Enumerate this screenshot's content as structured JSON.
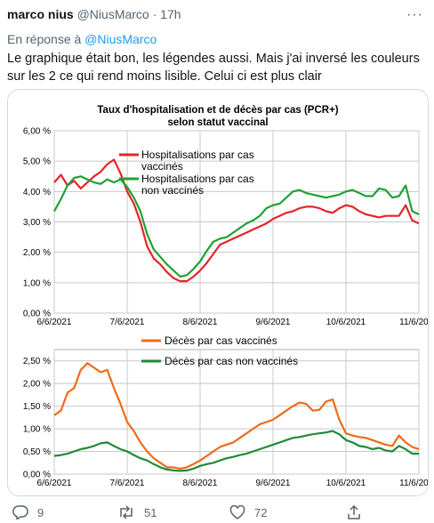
{
  "tweet": {
    "author_name": "marco nius",
    "author_handle": "@NiusMarco",
    "separator": "·",
    "time": "17h",
    "more_label": "···",
    "reply_prefix": "En réponse à",
    "reply_mention": "@NiusMarco",
    "text": "Le graphique était bon, les légendes aussi. Mais j'ai inversé les couleurs sur les 2 ce qui rend moins lisible. Celui ci est plus clair"
  },
  "actions": {
    "replies": "9",
    "retweets": "51",
    "likes": "72",
    "icons": [
      "reply-icon",
      "retweet-icon",
      "like-icon",
      "share-icon"
    ]
  },
  "colors": {
    "red": "#e52528",
    "green": "#1ca335",
    "orange": "#ef6a1a",
    "darkgreen": "#1f8a3a"
  },
  "chart_data": [
    {
      "type": "line",
      "title": "Taux d'hospitalisation et de décès par cas (PCR+)",
      "subtitle": "selon statut vaccinal",
      "x_ticks": [
        "6/6/2021",
        "7/6/2021",
        "8/6/2021",
        "9/6/2021",
        "10/6/2021",
        "11/6/2021"
      ],
      "y_ticks": [
        "0,00 %",
        "1,00 %",
        "2,00 %",
        "3,00 %",
        "4,00 %",
        "5,00 %",
        "6,00 %"
      ],
      "ylim": [
        0,
        6
      ],
      "grid": true,
      "legend_position": "top-left",
      "series": [
        {
          "name": "Hospitalisations par cas vaccinés",
          "color": "#e52528",
          "values": [
            4.3,
            4.55,
            4.2,
            4.35,
            4.1,
            4.3,
            4.5,
            4.65,
            4.9,
            5.05,
            4.6,
            4.0,
            3.6,
            3.0,
            2.2,
            1.8,
            1.6,
            1.35,
            1.15,
            1.05,
            1.05,
            1.2,
            1.4,
            1.65,
            1.95,
            2.25,
            2.35,
            2.45,
            2.55,
            2.65,
            2.75,
            2.85,
            2.95,
            3.1,
            3.2,
            3.3,
            3.35,
            3.45,
            3.5,
            3.5,
            3.45,
            3.35,
            3.3,
            3.45,
            3.55,
            3.5,
            3.35,
            3.25,
            3.2,
            3.15,
            3.2,
            3.2,
            3.2,
            3.55,
            3.05,
            2.95
          ]
        },
        {
          "name": "Hospitalisations par cas non vaccinés",
          "color": "#1ca335",
          "values": [
            3.35,
            3.75,
            4.2,
            4.45,
            4.5,
            4.4,
            4.3,
            4.25,
            4.4,
            4.3,
            4.4,
            4.15,
            3.8,
            3.35,
            2.6,
            2.1,
            1.85,
            1.6,
            1.4,
            1.2,
            1.25,
            1.45,
            1.7,
            2.05,
            2.35,
            2.45,
            2.5,
            2.65,
            2.8,
            2.95,
            3.05,
            3.2,
            3.45,
            3.55,
            3.6,
            3.8,
            4.0,
            4.05,
            3.95,
            3.9,
            3.85,
            3.8,
            3.85,
            3.9,
            4.0,
            4.05,
            3.95,
            3.85,
            3.85,
            4.1,
            4.05,
            3.8,
            3.85,
            4.2,
            3.35,
            3.25
          ]
        }
      ]
    },
    {
      "type": "line",
      "x_ticks": [
        "6/6/2021",
        "7/6/2021",
        "8/6/2021",
        "9/6/2021",
        "10/6/2021",
        "11/6/2021"
      ],
      "y_ticks": [
        "0,00 %",
        "0,50 %",
        "1,00 %",
        "1,50 %",
        "2,00 %",
        "2,50 %"
      ],
      "ylim": [
        0,
        2.75
      ],
      "grid": true,
      "legend_position": "top-center",
      "series": [
        {
          "name": "Décès par cas vaccinés",
          "color": "#ef6a1a",
          "values": [
            1.3,
            1.4,
            1.8,
            1.9,
            2.3,
            2.45,
            2.35,
            2.25,
            2.3,
            1.9,
            1.55,
            1.15,
            0.95,
            0.7,
            0.5,
            0.35,
            0.25,
            0.15,
            0.15,
            0.12,
            0.15,
            0.22,
            0.3,
            0.4,
            0.5,
            0.6,
            0.65,
            0.7,
            0.8,
            0.9,
            1.0,
            1.1,
            1.15,
            1.2,
            1.3,
            1.4,
            1.5,
            1.58,
            1.55,
            1.4,
            1.42,
            1.6,
            1.65,
            1.2,
            0.9,
            0.85,
            0.82,
            0.8,
            0.75,
            0.7,
            0.65,
            0.62,
            0.85,
            0.7,
            0.6,
            0.55
          ]
        },
        {
          "name": "Décès par cas non vaccinés",
          "color": "#1f8a3a",
          "values": [
            0.4,
            0.42,
            0.45,
            0.5,
            0.55,
            0.58,
            0.62,
            0.68,
            0.7,
            0.62,
            0.55,
            0.5,
            0.42,
            0.35,
            0.3,
            0.22,
            0.15,
            0.1,
            0.08,
            0.07,
            0.08,
            0.12,
            0.18,
            0.22,
            0.25,
            0.3,
            0.35,
            0.38,
            0.42,
            0.45,
            0.5,
            0.55,
            0.6,
            0.65,
            0.7,
            0.75,
            0.8,
            0.82,
            0.85,
            0.88,
            0.9,
            0.92,
            0.95,
            0.88,
            0.75,
            0.7,
            0.62,
            0.6,
            0.55,
            0.58,
            0.52,
            0.5,
            0.62,
            0.55,
            0.45,
            0.45
          ]
        }
      ]
    }
  ]
}
